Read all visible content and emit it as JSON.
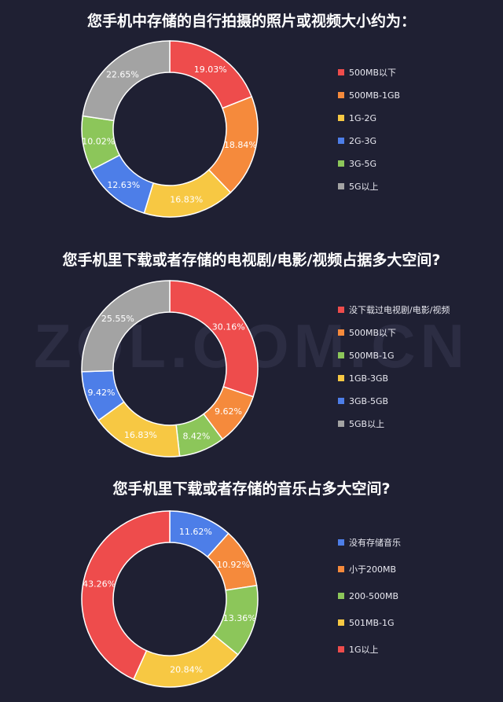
{
  "watermark": "ZOL.COM.CN",
  "chart_data": [
    {
      "type": "pie",
      "title": "您手机中存储的自行拍摄的照片或视频大小约为：",
      "legend_position": "right",
      "slices": [
        {
          "label": "500MB以下",
          "value": 19.03,
          "value_label": "19.03%",
          "color": "#ee4c4c"
        },
        {
          "label": "500MB-1GB",
          "value": 18.84,
          "value_label": "18.84%",
          "color": "#f58a3c"
        },
        {
          "label": "1G-2G",
          "value": 16.83,
          "value_label": "16.83%",
          "color": "#f7c843"
        },
        {
          "label": "2G-3G",
          "value": 12.63,
          "value_label": "12.63%",
          "color": "#4d7ee8"
        },
        {
          "label": "3G-5G",
          "value": 10.02,
          "value_label": "10.02%",
          "color": "#8cc65a"
        },
        {
          "label": "5G以上",
          "value": 22.65,
          "value_label": "22.65%",
          "color": "#a3a3a3"
        }
      ]
    },
    {
      "type": "pie",
      "title": "您手机里下载或者存储的电视剧/电影/视频占据多大空间?",
      "legend_position": "right",
      "slices": [
        {
          "label": "没下载过电视剧/电影/视频",
          "value": 30.16,
          "value_label": "30.16%",
          "color": "#ee4c4c"
        },
        {
          "label": "500MB以下",
          "value": 9.62,
          "value_label": "9.62%",
          "color": "#f58a3c"
        },
        {
          "label": "500MB-1G",
          "value": 8.42,
          "value_label": "8.42%",
          "color": "#8cc65a"
        },
        {
          "label": "1GB-3GB",
          "value": 16.83,
          "value_label": "16.83%",
          "color": "#f7c843"
        },
        {
          "label": "3GB-5GB",
          "value": 9.42,
          "value_label": "9.42%",
          "color": "#4d7ee8"
        },
        {
          "label": "5GB以上",
          "value": 25.55,
          "value_label": "25.55%",
          "color": "#a3a3a3"
        }
      ]
    },
    {
      "type": "pie",
      "title": "您手机里下载或者存储的音乐占多大空间?",
      "legend_position": "right",
      "slices": [
        {
          "label": "没有存储音乐",
          "value": 11.62,
          "value_label": "11.62%",
          "color": "#4d7ee8"
        },
        {
          "label": "小于200MB",
          "value": 10.92,
          "value_label": "10.92%",
          "color": "#f58a3c"
        },
        {
          "label": "200-500MB",
          "value": 13.36,
          "value_label": "13.36%",
          "color": "#8cc65a"
        },
        {
          "label": "501MB-1G",
          "value": 20.84,
          "value_label": "20.84%",
          "color": "#f7c843"
        },
        {
          "label": "1G以上",
          "value": 43.26,
          "value_label": "43.26%",
          "color": "#ee4c4c"
        }
      ]
    }
  ]
}
